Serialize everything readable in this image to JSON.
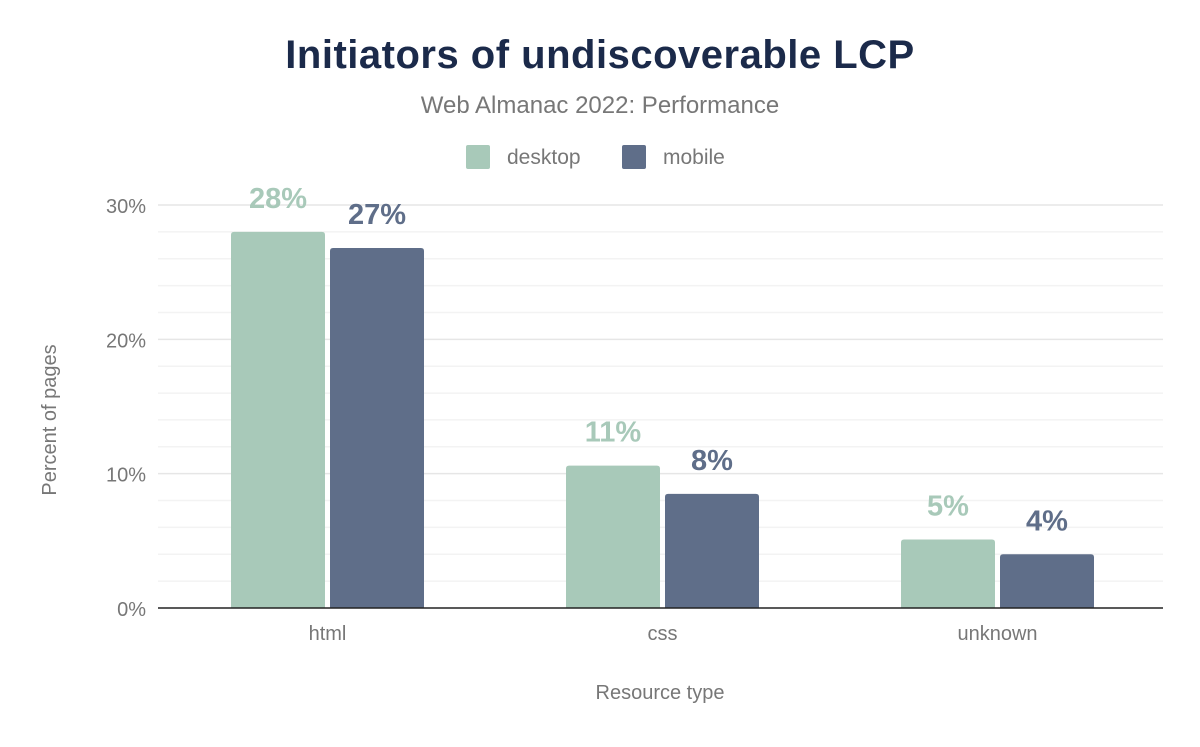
{
  "chart_data": {
    "type": "bar",
    "title": "Initiators of undiscoverable LCP",
    "subtitle": "Web Almanac 2022: Performance",
    "xlabel": "Resource type",
    "ylabel": "Percent of pages",
    "categories": [
      "html",
      "css",
      "unknown"
    ],
    "series": [
      {
        "name": "desktop",
        "values": [
          28.0,
          10.6,
          5.1
        ],
        "labels": [
          "28%",
          "11%",
          "5%"
        ],
        "color": "#a8c9b9"
      },
      {
        "name": "mobile",
        "values": [
          26.8,
          8.5,
          4.0
        ],
        "labels": [
          "27%",
          "8%",
          "4%"
        ],
        "color": "#5f6e89"
      }
    ],
    "ylim": [
      0,
      30
    ],
    "yticks": [
      0,
      10,
      20,
      30
    ],
    "ytick_labels": [
      "0%",
      "10%",
      "20%",
      "30%"
    ],
    "grid": true,
    "legend_placement": "top-center",
    "colors": {
      "title": "#1b2a4a",
      "text": "#777777"
    }
  }
}
